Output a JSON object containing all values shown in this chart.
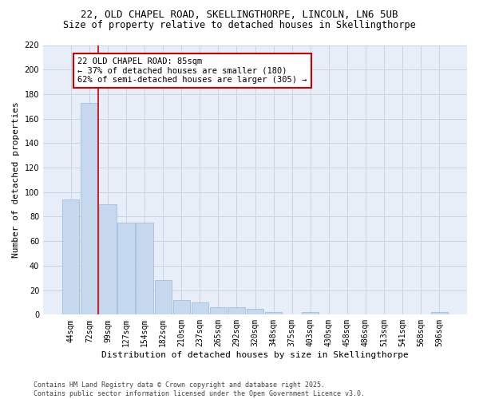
{
  "title_line1": "22, OLD CHAPEL ROAD, SKELLINGTHORPE, LINCOLN, LN6 5UB",
  "title_line2": "Size of property relative to detached houses in Skellingthorpe",
  "categories": [
    "44sqm",
    "72sqm",
    "99sqm",
    "127sqm",
    "154sqm",
    "182sqm",
    "210sqm",
    "237sqm",
    "265sqm",
    "292sqm",
    "320sqm",
    "348sqm",
    "375sqm",
    "403sqm",
    "430sqm",
    "458sqm",
    "486sqm",
    "513sqm",
    "541sqm",
    "568sqm",
    "596sqm"
  ],
  "values": [
    94,
    173,
    90,
    75,
    75,
    28,
    12,
    10,
    6,
    6,
    5,
    2,
    0,
    2,
    0,
    0,
    0,
    0,
    0,
    0,
    2
  ],
  "bar_color": "#c5d8ee",
  "bar_edge_color": "#9ab8d8",
  "xlabel": "Distribution of detached houses by size in Skellingthorpe",
  "ylabel": "Number of detached properties",
  "ylim": [
    0,
    220
  ],
  "yticks": [
    0,
    20,
    40,
    60,
    80,
    100,
    120,
    140,
    160,
    180,
    200,
    220
  ],
  "vline_color": "#cc0000",
  "vline_x_index": 1.5,
  "annotation_line1": "22 OLD CHAPEL ROAD: 85sqm",
  "annotation_line2": "← 37% of detached houses are smaller (180)",
  "annotation_line3": "62% of semi-detached houses are larger (305) →",
  "background_color": "#e8eef8",
  "grid_color": "#c8d4e8",
  "footer_line1": "Contains HM Land Registry data © Crown copyright and database right 2025.",
  "footer_line2": "Contains public sector information licensed under the Open Government Licence v3.0.",
  "title_fontsize": 9,
  "subtitle_fontsize": 8.5,
  "axis_label_fontsize": 8,
  "tick_fontsize": 7,
  "annotation_fontsize": 7.5,
  "footer_fontsize": 6
}
